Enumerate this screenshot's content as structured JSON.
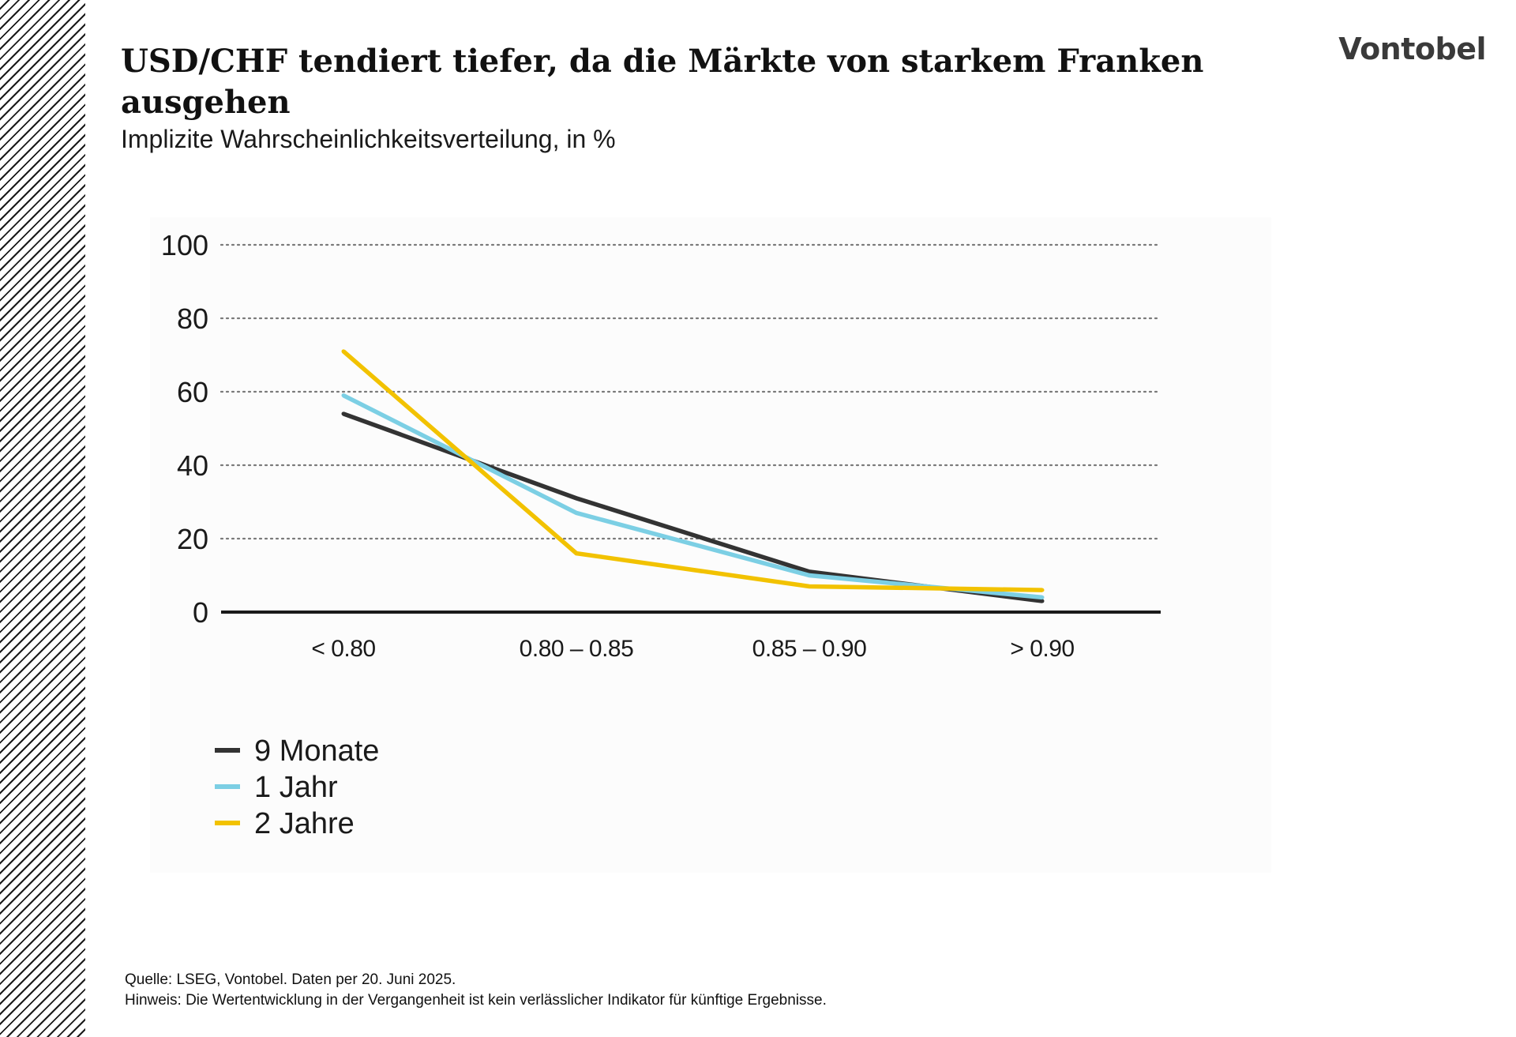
{
  "header": {
    "title": "USD/CHF tendiert tiefer, da die Märkte von starkem Franken ausgehen",
    "subtitle": "Implizite Wahrscheinlichkeitsverteilung, in %",
    "logo": "Vontobel"
  },
  "chart_data": {
    "type": "line",
    "categories": [
      "< 0.80",
      "0.80 – 0.85",
      "0.85 – 0.90",
      "> 0.90"
    ],
    "series": [
      {
        "name": "9 Monate",
        "values": [
          54,
          31,
          11,
          3
        ],
        "color": "#333333"
      },
      {
        "name": "1 Jahr",
        "values": [
          59,
          27,
          10,
          4
        ],
        "color": "#7ccfe4"
      },
      {
        "name": "2 Jahre",
        "values": [
          71,
          16,
          7,
          6
        ],
        "color": "#f2c200"
      }
    ],
    "ylim": [
      0,
      100
    ],
    "yticks": [
      0,
      20,
      40,
      60,
      80,
      100
    ],
    "grid": true,
    "legend_position": "bottom-left"
  },
  "footer": {
    "source": "Quelle: LSEG, Vontobel. Daten per 20. Juni 2025.",
    "note": "Hinweis: Die Wertentwicklung in der Vergangenheit ist kein verlässlicher Indikator für künftige Ergebnisse."
  }
}
